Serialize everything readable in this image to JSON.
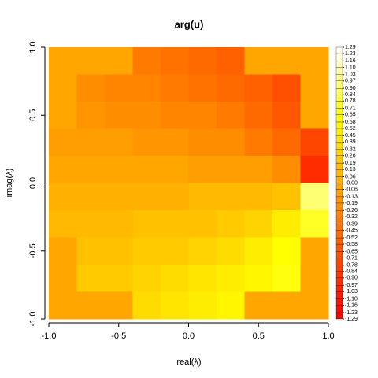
{
  "chart_data": {
    "type": "heatmap",
    "title": "arg(u)",
    "xlabel": "real(λ)",
    "ylabel": "imag(λ)",
    "xlim": [
      -1,
      1
    ],
    "ylim": [
      -1,
      1
    ],
    "xticks": [
      {
        "value": -1,
        "label": "-1.0"
      },
      -0.5,
      {
        "value": 0,
        "label": "0.0"
      },
      0.5,
      {
        "value": 1,
        "label": "1.0"
      }
    ],
    "yticks": [
      {
        "value": -1,
        "label": "-1.0"
      },
      -0.5,
      {
        "value": 0,
        "label": "0.0"
      },
      0.5,
      {
        "value": 1,
        "label": "1.0"
      }
    ],
    "colormap": "heat",
    "zlim": [
      -1.29,
      1.29
    ],
    "zticks": [
      -1.29,
      -1.23,
      -1.16,
      {
        "value": -1.1,
        "label": "-1.10"
      },
      -1.03,
      -0.97,
      {
        "value": -0.9,
        "label": "-0.90"
      },
      -0.84,
      -0.78,
      -0.71,
      -0.65,
      -0.58,
      -0.52,
      -0.45,
      -0.39,
      -0.32,
      -0.26,
      -0.19,
      -0.13,
      -0.06,
      {
        "value": 0,
        "label": "-0.00"
      },
      0.06,
      0.13,
      0.19,
      0.26,
      0.32,
      0.39,
      0.45,
      0.52,
      0.58,
      0.65,
      0.71,
      0.78,
      0.84,
      {
        "value": 0.9,
        "label": "0.90"
      },
      0.97,
      1.03,
      {
        "value": 1.1,
        "label": "1.10"
      },
      1.16,
      1.23,
      1.29
    ],
    "x": [
      -0.9,
      -0.7,
      -0.5,
      -0.3,
      -0.1,
      0.1,
      0.3,
      0.5,
      0.7,
      0.9
    ],
    "y": [
      0.9,
      0.7,
      0.5,
      0.3,
      0.1,
      -0.1,
      -0.3,
      -0.5,
      -0.7,
      -0.9
    ],
    "z": [
      [
        -0.03,
        -0.03,
        -0.03,
        -0.36,
        -0.41,
        -0.47,
        -0.55,
        -0.03,
        -0.03,
        -0.03
      ],
      [
        -0.03,
        -0.23,
        -0.26,
        -0.3,
        -0.34,
        -0.4,
        -0.47,
        -0.57,
        -0.7,
        -0.03
      ],
      [
        -0.03,
        -0.17,
        -0.19,
        -0.22,
        -0.26,
        -0.3,
        -0.37,
        -0.47,
        -0.62,
        -0.03
      ],
      [
        -0.09,
        -0.11,
        -0.12,
        -0.14,
        -0.16,
        -0.19,
        -0.24,
        -0.32,
        -0.47,
        -0.75
      ],
      [
        -0.03,
        -0.04,
        -0.04,
        -0.05,
        -0.05,
        -0.07,
        -0.09,
        -0.12,
        -0.19,
        -0.95
      ],
      [
        0.03,
        0.04,
        0.04,
        0.05,
        0.05,
        0.07,
        0.09,
        0.12,
        0.19,
        0.95
      ],
      [
        0.09,
        0.11,
        0.12,
        0.14,
        0.16,
        0.19,
        0.24,
        0.32,
        0.47,
        0.75
      ],
      [
        -0.03,
        0.17,
        0.19,
        0.22,
        0.26,
        0.3,
        0.37,
        0.47,
        0.62,
        -0.03
      ],
      [
        -0.03,
        0.23,
        0.26,
        0.3,
        0.34,
        0.4,
        0.47,
        0.57,
        0.7,
        -0.03
      ],
      [
        -0.03,
        -0.03,
        -0.03,
        0.36,
        0.41,
        0.47,
        0.55,
        -0.03,
        -0.03,
        -0.03
      ]
    ]
  }
}
